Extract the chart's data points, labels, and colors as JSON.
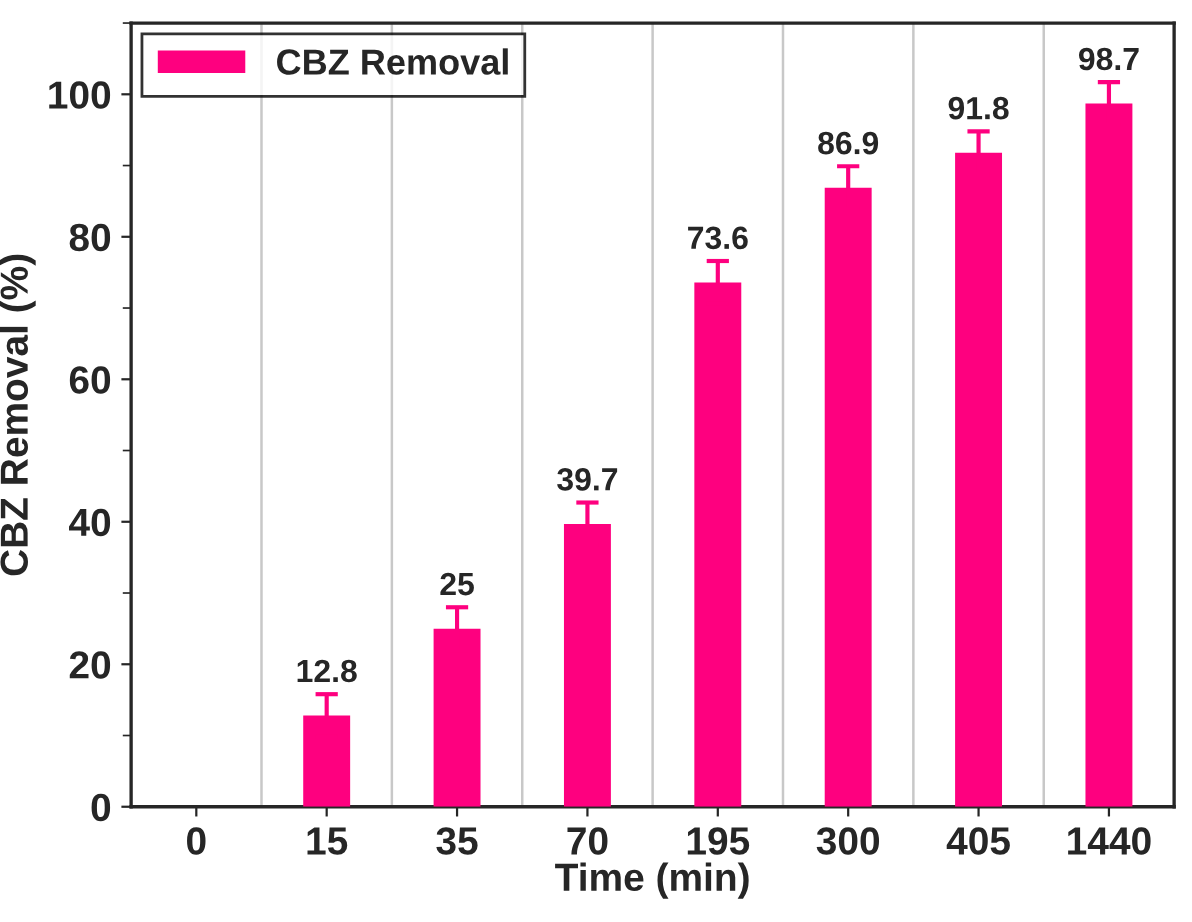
{
  "chart_data": {
    "type": "bar",
    "xlabel": "Time (min)",
    "ylabel": "CBZ Removal (%)",
    "categories": [
      "0",
      "15",
      "35",
      "70",
      "195",
      "300",
      "405",
      "1440"
    ],
    "series": [
      {
        "name": "CBZ Removal",
        "color": "#fe007f",
        "values": [
          0,
          12.8,
          25,
          39.7,
          73.6,
          86.9,
          91.8,
          98.7
        ],
        "errors": [
          null,
          3,
          3,
          3,
          3,
          3,
          3,
          3
        ],
        "value_labels": [
          null,
          "12.8",
          "25",
          "39.7",
          "73.6",
          "86.9",
          "91.8",
          "98.7"
        ]
      }
    ],
    "ylim": [
      0,
      110
    ],
    "yticks": [
      0,
      20,
      40,
      60,
      80,
      100
    ],
    "grid": "x",
    "legend": "top left"
  }
}
